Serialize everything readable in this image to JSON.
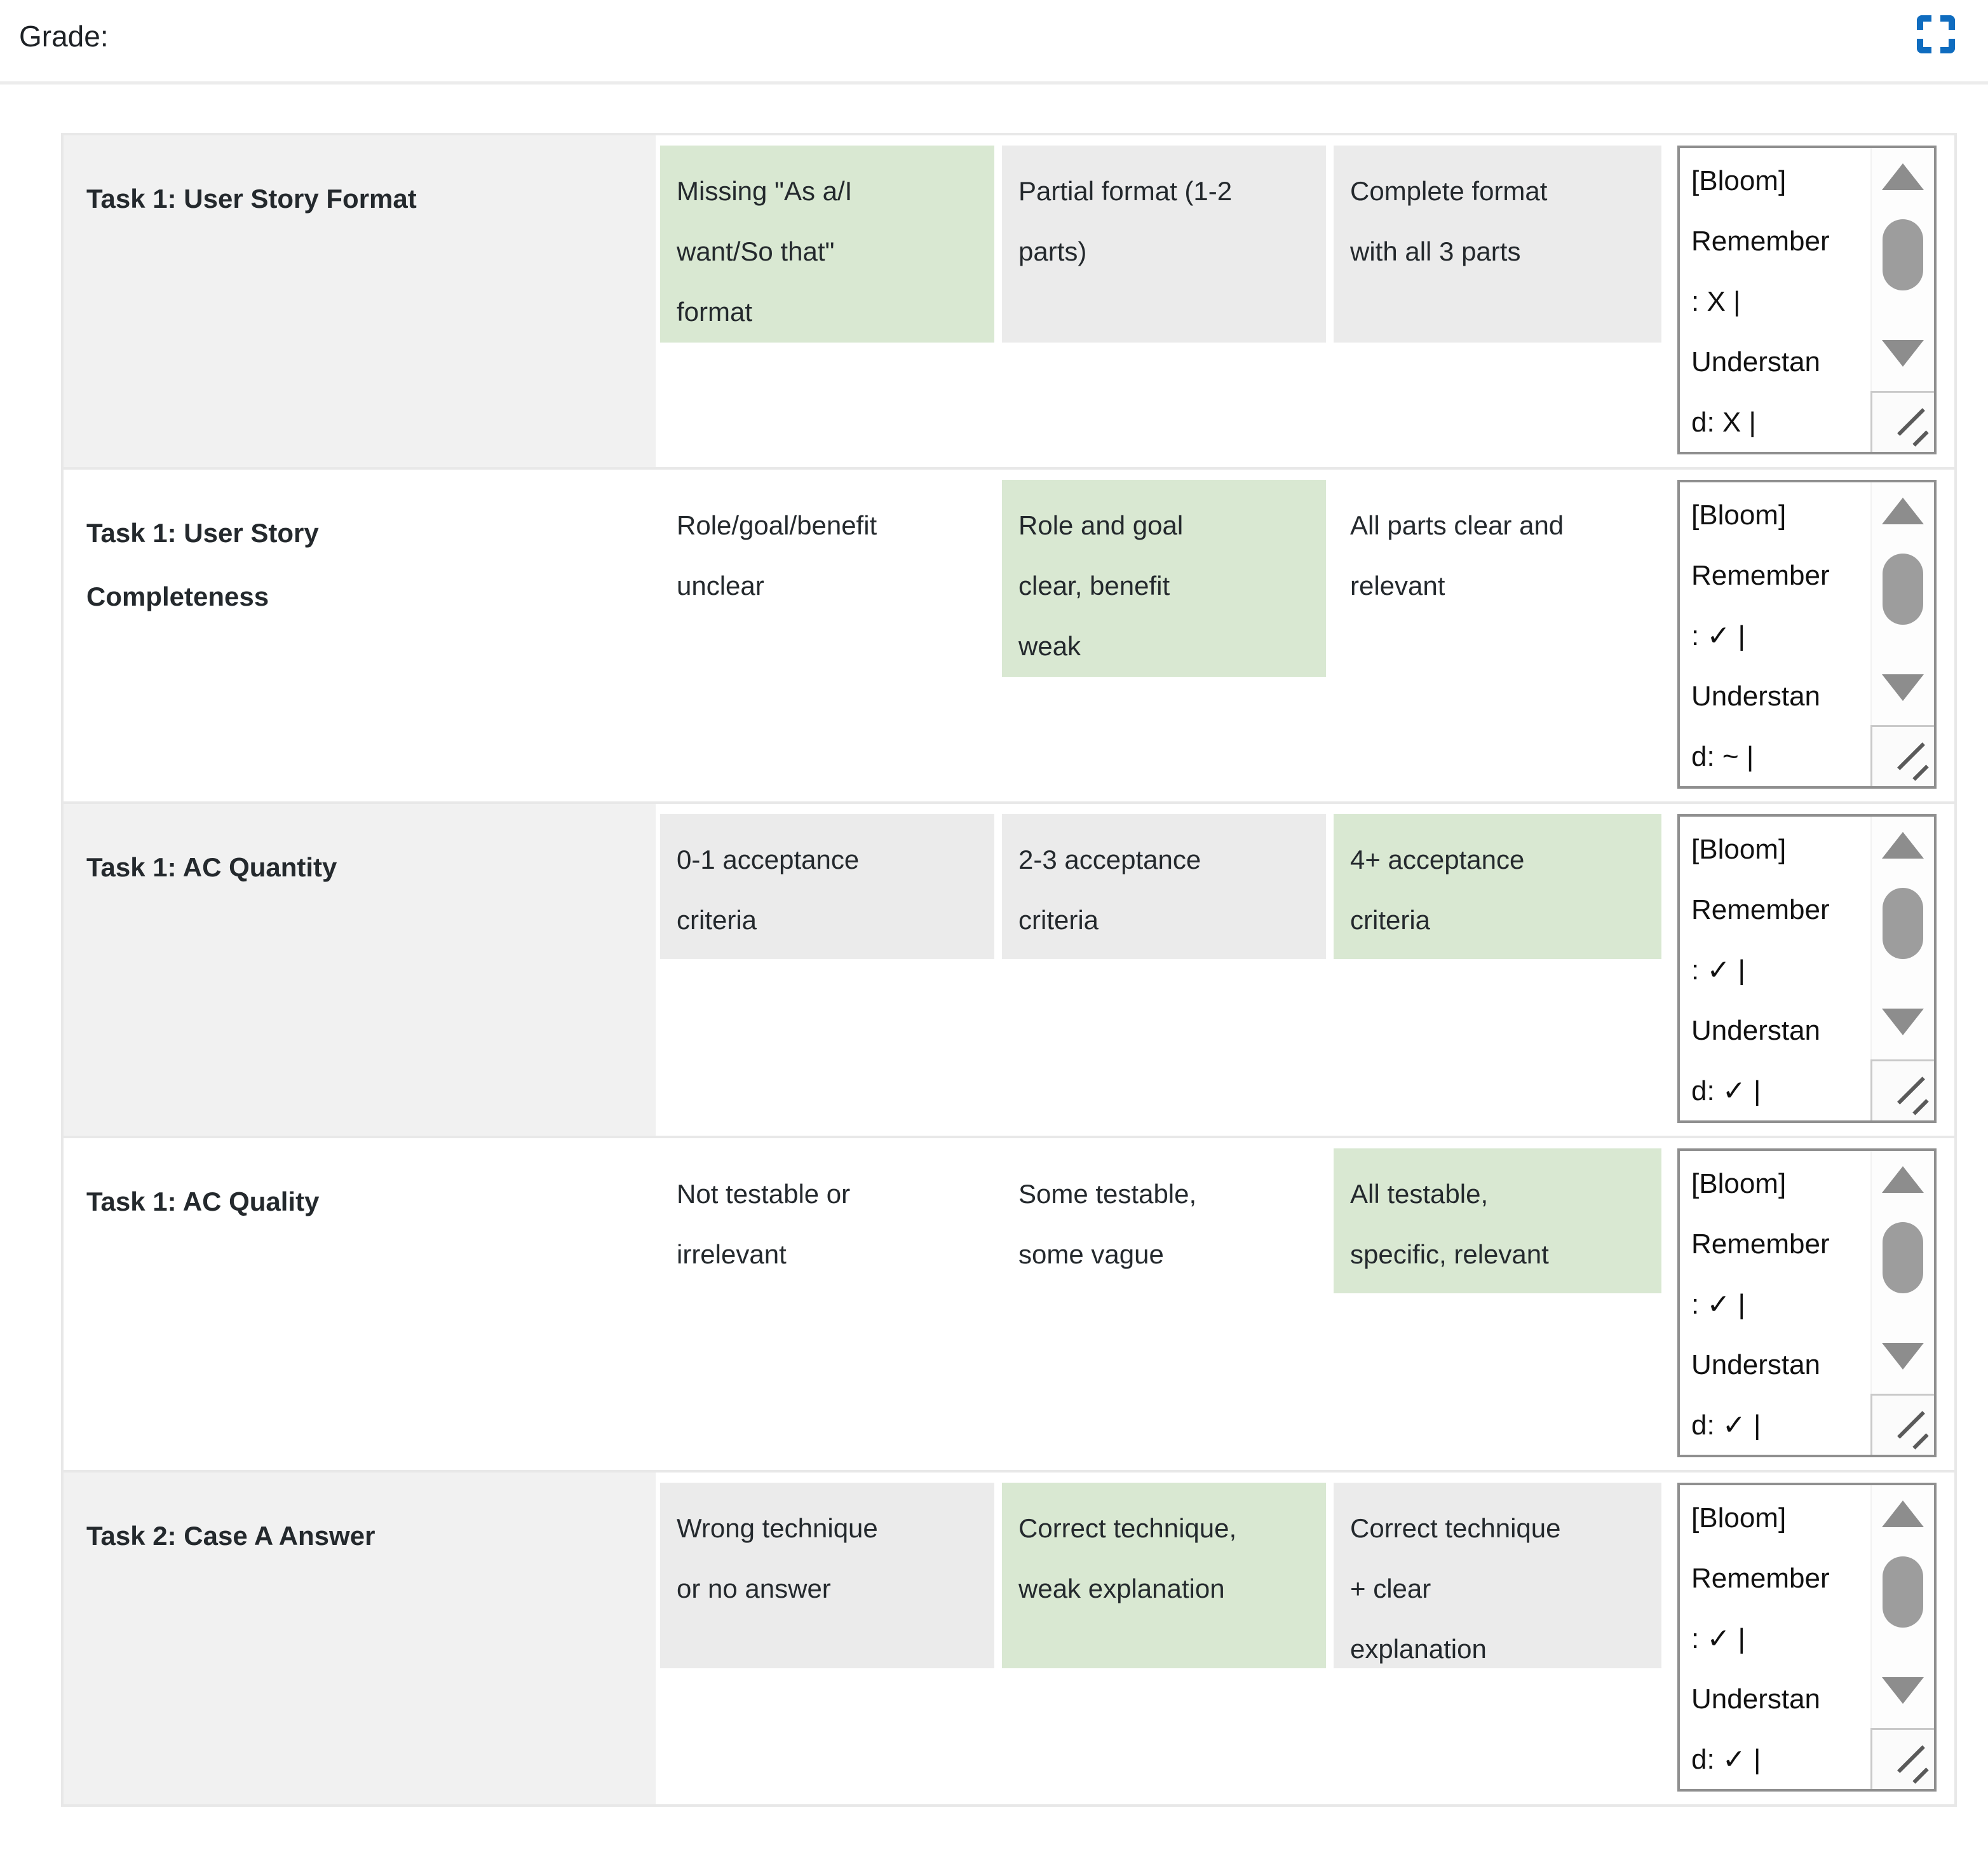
{
  "header": {
    "grade_label": "Grade:",
    "expand_icon": "expand-icon"
  },
  "colors": {
    "accent_blue": "#0f6cbf",
    "selected_green": "#d9e8d2",
    "level_gray": "#ebebeb",
    "stripe_gray": "#f1f1f1",
    "border_gray": "#e8e8e8",
    "textarea_border": "#8f8f8f"
  },
  "rubric": {
    "rows": [
      {
        "criterion": "Task 1: User Story Format",
        "criterion_lines": [
          "Task 1: User Story Format"
        ],
        "levels": [
          {
            "text": "Missing \"As a/I want/So that\" format",
            "lines": [
              "Missing \"As a/I",
              "want/So that\"",
              "format"
            ],
            "selected": true
          },
          {
            "text": "Partial format (1-2 parts)",
            "lines": [
              "Partial format (1-2",
              "parts)"
            ],
            "selected": false
          },
          {
            "text": "Complete format with all 3 parts",
            "lines": [
              "Complete format",
              "with all 3 parts"
            ],
            "selected": false
          }
        ],
        "remark": "[Bloom] Remember: X | Understand: X |",
        "remark_lines": [
          "[Bloom]",
          "Remember",
          ": X |",
          "Understan",
          "d: X |"
        ]
      },
      {
        "criterion": "Task 1: User Story Completeness",
        "criterion_lines": [
          "Task 1: User Story",
          "Completeness"
        ],
        "levels": [
          {
            "text": "Role/goal/benefit unclear",
            "lines": [
              "Role/goal/benefit",
              "unclear"
            ],
            "selected": false
          },
          {
            "text": "Role and goal clear, benefit weak",
            "lines": [
              "Role and goal",
              "clear, benefit",
              "weak"
            ],
            "selected": true
          },
          {
            "text": "All parts clear and relevant",
            "lines": [
              "All parts clear and",
              "relevant"
            ],
            "selected": false
          }
        ],
        "remark": "[Bloom] Remember: ✓ | Understand: ~ |",
        "remark_lines": [
          "[Bloom]",
          "Remember",
          ": ✓ |",
          "Understan",
          "d: ~ |"
        ]
      },
      {
        "criterion": "Task 1: AC Quantity",
        "criterion_lines": [
          "Task 1: AC Quantity"
        ],
        "levels": [
          {
            "text": "0-1 acceptance criteria",
            "lines": [
              "0-1 acceptance",
              "criteria"
            ],
            "selected": false
          },
          {
            "text": "2-3 acceptance criteria",
            "lines": [
              "2-3 acceptance",
              "criteria"
            ],
            "selected": false
          },
          {
            "text": "4+ acceptance criteria",
            "lines": [
              "4+ acceptance",
              "criteria"
            ],
            "selected": true
          }
        ],
        "remark": "[Bloom] Remember: ✓ | Understand: ✓ |",
        "remark_lines": [
          "[Bloom]",
          "Remember",
          ": ✓ |",
          "Understan",
          "d: ✓ |"
        ]
      },
      {
        "criterion": "Task 1: AC Quality",
        "criterion_lines": [
          "Task 1: AC Quality"
        ],
        "levels": [
          {
            "text": "Not testable or irrelevant",
            "lines": [
              "Not testable or",
              "irrelevant"
            ],
            "selected": false
          },
          {
            "text": "Some testable, some vague",
            "lines": [
              "Some testable,",
              "some vague"
            ],
            "selected": false
          },
          {
            "text": "All testable, specific, relevant",
            "lines": [
              "All testable,",
              "specific, relevant"
            ],
            "selected": true
          }
        ],
        "remark": "[Bloom] Remember: ✓ | Understand: ✓ |",
        "remark_lines": [
          "[Bloom]",
          "Remember",
          ": ✓ |",
          "Understan",
          "d: ✓ |"
        ]
      },
      {
        "criterion": "Task 2: Case A Answer",
        "criterion_lines": [
          "Task 2: Case A Answer"
        ],
        "levels": [
          {
            "text": "Wrong technique or no answer",
            "lines": [
              "Wrong technique",
              "or no answer"
            ],
            "selected": false
          },
          {
            "text": "Correct technique, weak explanation",
            "lines": [
              "Correct technique,",
              "weak explanation"
            ],
            "selected": true
          },
          {
            "text": "Correct technique + clear explanation",
            "lines": [
              "Correct technique",
              "+ clear",
              "explanation"
            ],
            "selected": false
          }
        ],
        "remark": "[Bloom] Remember: ✓ | Understand: ✓ |",
        "remark_lines": [
          "[Bloom]",
          "Remember",
          ": ✓ |",
          "Understan",
          "d: ✓ |"
        ]
      }
    ]
  }
}
